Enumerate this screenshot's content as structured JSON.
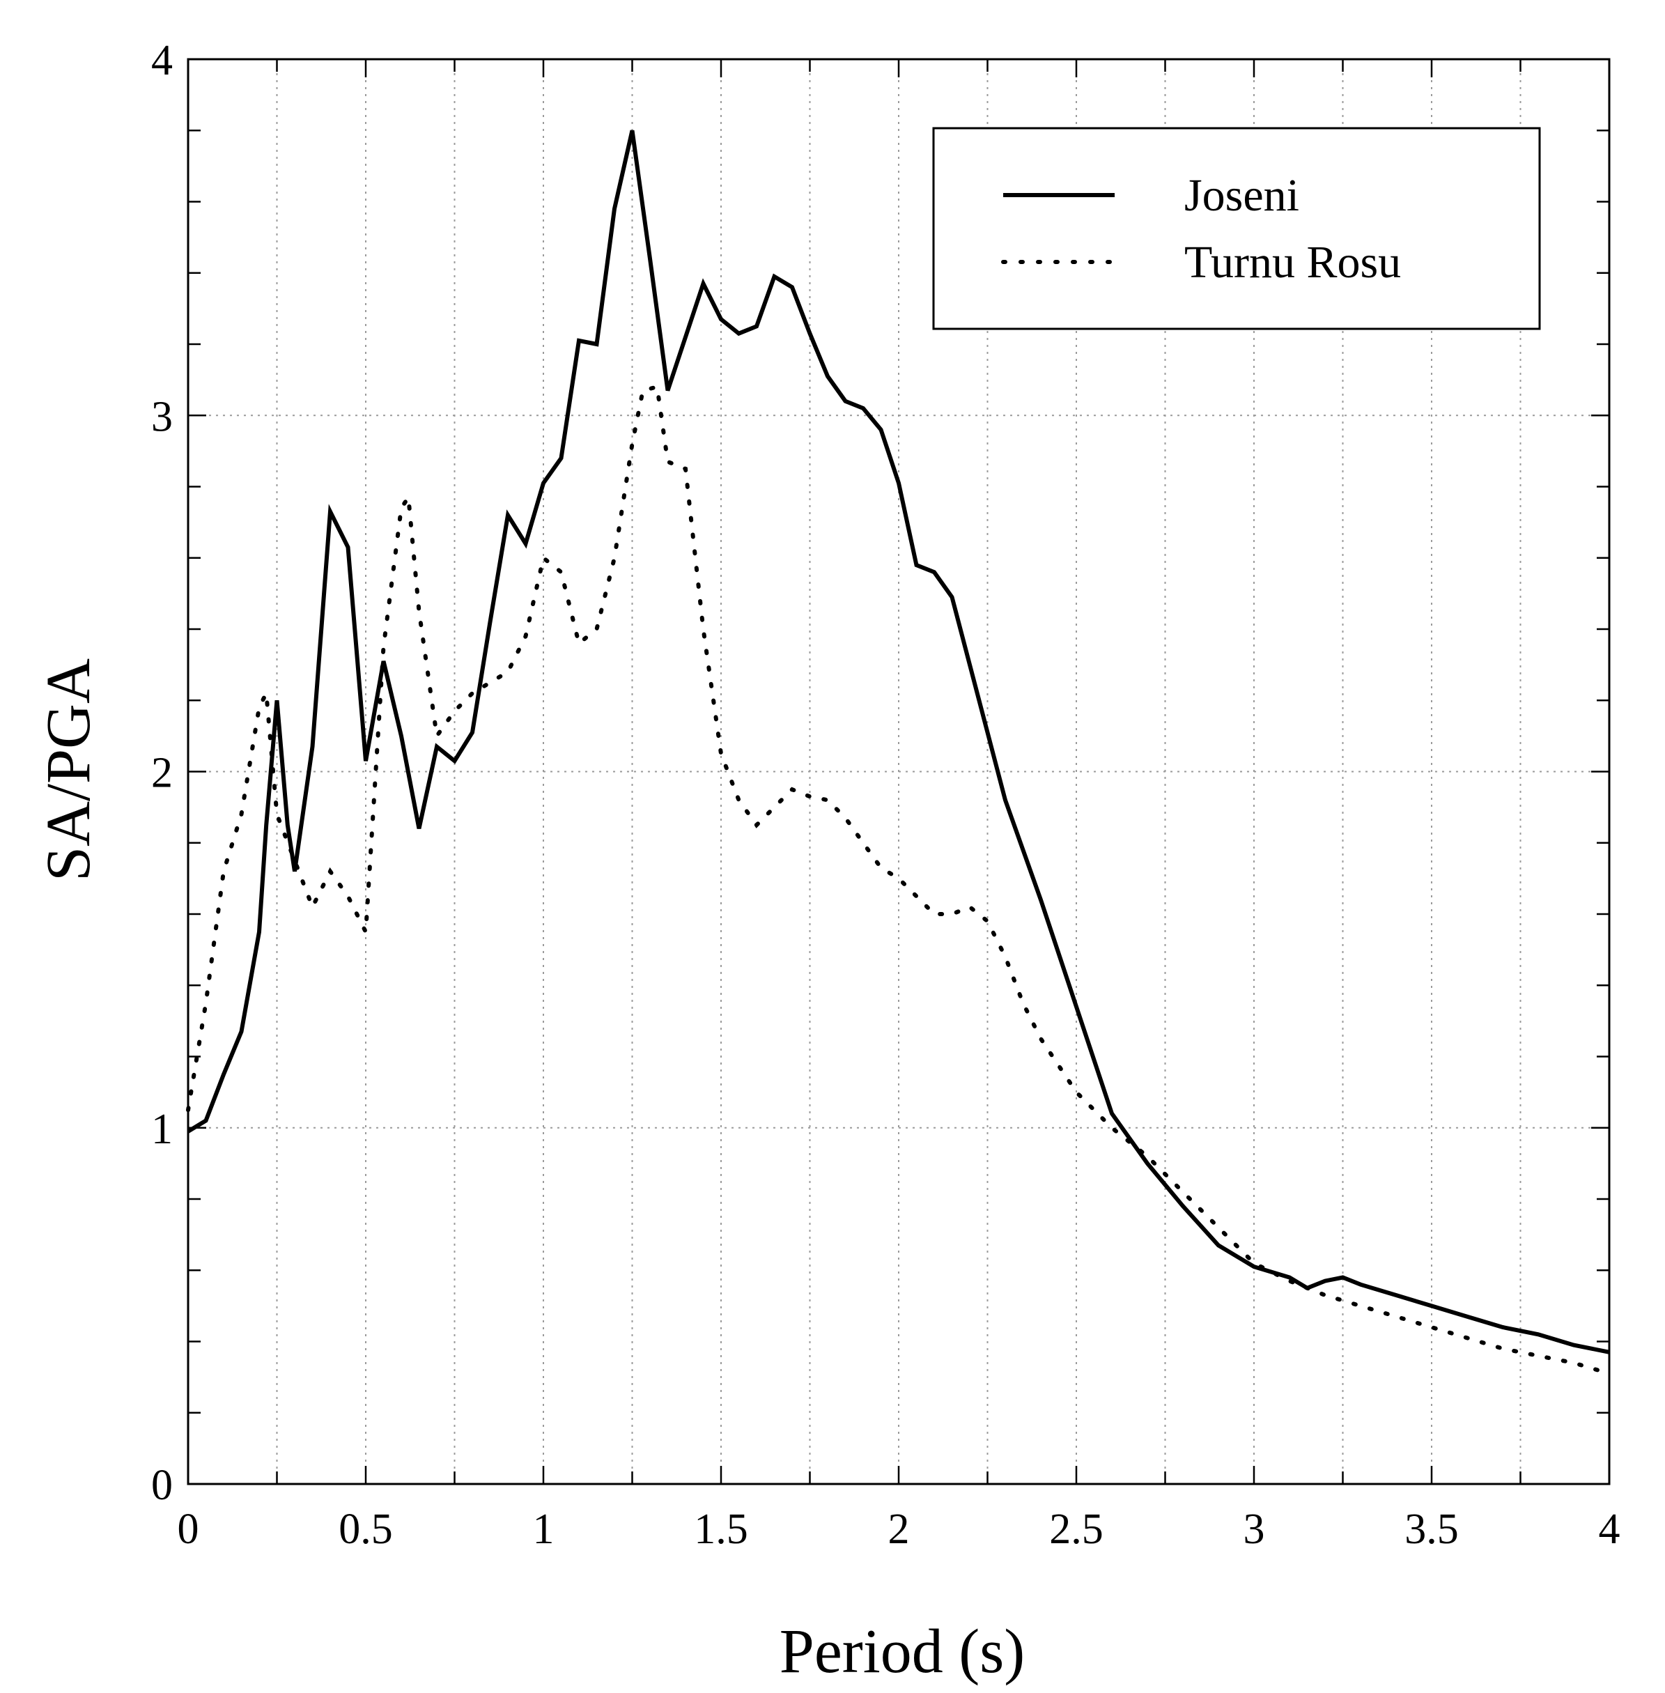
{
  "chart_data": {
    "type": "line",
    "title": "",
    "xlabel": "Period (s)",
    "ylabel": "SA/PGA",
    "xlim": [
      0,
      4
    ],
    "ylim": [
      0,
      4
    ],
    "grid": true,
    "legend_position": "top-right",
    "x_ticks": [
      0,
      0.5,
      1,
      1.5,
      2,
      2.5,
      3,
      3.5,
      4
    ],
    "x_tick_labels": [
      "0",
      "0.5",
      "1",
      "1.5",
      "2",
      "2.5",
      "3",
      "3.5",
      "4"
    ],
    "y_ticks": [
      0,
      1,
      2,
      3,
      4
    ],
    "y_tick_labels": [
      "0",
      "1",
      "2",
      "3",
      "4"
    ],
    "series": [
      {
        "name": "Joseni",
        "style": "solid",
        "color": "#000000",
        "x": [
          0,
          0.05,
          0.1,
          0.15,
          0.2,
          0.22,
          0.25,
          0.28,
          0.3,
          0.35,
          0.4,
          0.45,
          0.5,
          0.55,
          0.6,
          0.65,
          0.7,
          0.75,
          0.8,
          0.85,
          0.9,
          0.95,
          1.0,
          1.05,
          1.1,
          1.15,
          1.2,
          1.25,
          1.3,
          1.35,
          1.4,
          1.45,
          1.5,
          1.55,
          1.6,
          1.65,
          1.7,
          1.75,
          1.8,
          1.85,
          1.9,
          1.95,
          2.0,
          2.05,
          2.1,
          2.15,
          2.2,
          2.25,
          2.3,
          2.35,
          2.4,
          2.5,
          2.6,
          2.7,
          2.8,
          2.9,
          3.0,
          3.1,
          3.15,
          3.2,
          3.25,
          3.3,
          3.4,
          3.5,
          3.6,
          3.7,
          3.8,
          3.9,
          3.95,
          4.0
        ],
        "y": [
          0.99,
          1.02,
          1.15,
          1.27,
          1.55,
          1.85,
          2.2,
          1.85,
          1.72,
          2.07,
          2.73,
          2.63,
          2.03,
          2.31,
          2.1,
          1.84,
          2.07,
          2.03,
          2.11,
          2.42,
          2.72,
          2.64,
          2.81,
          2.88,
          3.21,
          3.2,
          3.58,
          3.8,
          3.44,
          3.07,
          3.22,
          3.37,
          3.27,
          3.23,
          3.25,
          3.39,
          3.36,
          3.23,
          3.11,
          3.04,
          3.02,
          2.96,
          2.81,
          2.58,
          2.56,
          2.49,
          2.3,
          2.11,
          1.92,
          1.78,
          1.64,
          1.34,
          1.04,
          0.9,
          0.78,
          0.67,
          0.61,
          0.58,
          0.55,
          0.57,
          0.58,
          0.56,
          0.53,
          0.5,
          0.47,
          0.44,
          0.42,
          0.39,
          0.38,
          0.37
        ]
      },
      {
        "name": "Turnu Rosu",
        "style": "dotted",
        "color": "#000000",
        "x": [
          0,
          0.05,
          0.1,
          0.15,
          0.2,
          0.22,
          0.25,
          0.3,
          0.35,
          0.4,
          0.45,
          0.5,
          0.55,
          0.6,
          0.62,
          0.65,
          0.7,
          0.75,
          0.8,
          0.85,
          0.9,
          0.95,
          1.0,
          1.05,
          1.1,
          1.15,
          1.2,
          1.25,
          1.28,
          1.32,
          1.35,
          1.4,
          1.45,
          1.5,
          1.55,
          1.6,
          1.65,
          1.7,
          1.75,
          1.8,
          1.85,
          1.9,
          1.95,
          2.0,
          2.05,
          2.1,
          2.15,
          2.2,
          2.25,
          2.3,
          2.35,
          2.4,
          2.5,
          2.6,
          2.7,
          2.8,
          2.9,
          3.0,
          3.1,
          3.2,
          3.3,
          3.4,
          3.5,
          3.6,
          3.7,
          3.8,
          3.9,
          4.0
        ],
        "y": [
          1.05,
          1.35,
          1.72,
          1.88,
          2.18,
          2.22,
          1.88,
          1.75,
          1.62,
          1.72,
          1.65,
          1.55,
          2.35,
          2.74,
          2.77,
          2.45,
          2.1,
          2.17,
          2.22,
          2.25,
          2.28,
          2.38,
          2.6,
          2.56,
          2.36,
          2.4,
          2.6,
          2.92,
          3.07,
          3.08,
          2.87,
          2.85,
          2.4,
          2.05,
          1.92,
          1.85,
          1.9,
          1.95,
          1.93,
          1.92,
          1.87,
          1.8,
          1.73,
          1.7,
          1.65,
          1.6,
          1.6,
          1.62,
          1.58,
          1.48,
          1.35,
          1.25,
          1.1,
          1.0,
          0.92,
          0.82,
          0.72,
          0.62,
          0.57,
          0.53,
          0.5,
          0.47,
          0.44,
          0.41,
          0.38,
          0.36,
          0.34,
          0.31
        ]
      }
    ]
  },
  "legend": {
    "items": [
      {
        "label": "Joseni"
      },
      {
        "label": "Turnu Rosu"
      }
    ]
  }
}
